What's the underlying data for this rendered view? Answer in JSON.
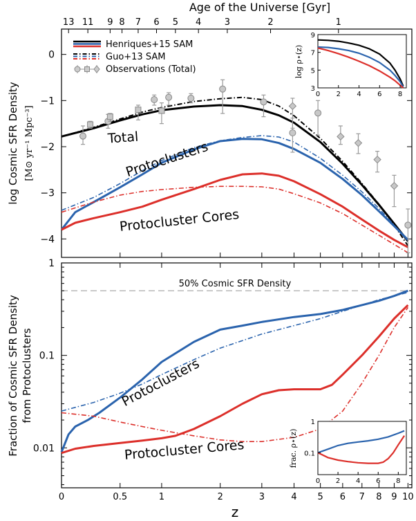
{
  "figure": {
    "top_axis_title": "Age of the Universe  [Gyr]",
    "x_axis_label": "z",
    "colors": {
      "total": "#000000",
      "protoclusters": "#2a63ad",
      "cores": "#dc2f2a",
      "observations": "#999999",
      "guide": "#aaaaaa"
    }
  },
  "chart_data": [
    {
      "id": "top",
      "type": "line",
      "title": "",
      "xlabel": "z",
      "ylabel": "log Cosmic SFR Density",
      "ylabel_units": "[M⊙ yr⁻¹ Mpc⁻³]",
      "xscale": "log(1+z)",
      "xlim": [
        0,
        10.3
      ],
      "ylim": [
        -4.4,
        0.55
      ],
      "yticks": [
        0,
        -1,
        -2,
        -3,
        -4
      ],
      "yticklabels": [
        "0",
        "−1",
        "−2",
        "−3",
        "−4"
      ],
      "top_axis": {
        "label": "Age of the Universe  [Gyr]",
        "ticks": [
          {
            "label": "13",
            "z": 0.05
          },
          {
            "label": "11",
            "z": 0.2
          },
          {
            "label": "9",
            "z": 0.4
          },
          {
            "label": "8",
            "z": 0.52
          },
          {
            "label": "7",
            "z": 0.7
          },
          {
            "label": "6",
            "z": 0.93
          },
          {
            "label": "5",
            "z": 1.2
          },
          {
            "label": "4",
            "z": 1.58
          },
          {
            "label": "3",
            "z": 2.15
          },
          {
            "label": "2",
            "z": 3.25
          },
          {
            "label": "1",
            "z": 5.8
          }
        ]
      },
      "legend": {
        "position": "top-left",
        "entries": [
          {
            "label": "Henriques+15 SAM",
            "style": "solid"
          },
          {
            "label": "Guo+13 SAM",
            "style": "dash-dot"
          },
          {
            "label": "Observations (Total)",
            "style": "markers"
          }
        ]
      },
      "annotations": [
        {
          "text": "Total",
          "color": "#000000",
          "z": 0.38,
          "y": -1.92,
          "rotate": -4
        },
        {
          "text": "Protoclusters",
          "color": "#2a63ad",
          "z": 0.58,
          "y": -2.65,
          "rotate": -18
        },
        {
          "text": "Protocluster Cores",
          "color": "#dc2f2a",
          "z": 0.5,
          "y": -3.83,
          "rotate": -6
        }
      ],
      "series": [
        {
          "name": "Total (Henriques+15)",
          "color": "#000000",
          "style": "solid",
          "width": 3,
          "x": [
            0,
            0.25,
            0.5,
            0.75,
            1,
            1.5,
            2,
            2.5,
            3,
            3.5,
            4,
            5,
            6,
            7,
            8,
            9,
            10
          ],
          "y": [
            -1.78,
            -1.6,
            -1.43,
            -1.3,
            -1.21,
            -1.13,
            -1.1,
            -1.12,
            -1.2,
            -1.32,
            -1.48,
            -1.9,
            -2.37,
            -2.83,
            -3.26,
            -3.67,
            -4.05
          ]
        },
        {
          "name": "Total (Guo+13)",
          "color": "#000000",
          "style": "dashdot",
          "width": 2,
          "x": [
            0,
            0.25,
            0.5,
            0.75,
            1,
            1.5,
            2,
            2.5,
            3,
            3.5,
            4,
            5,
            6,
            7,
            8,
            9,
            10
          ],
          "y": [
            -1.78,
            -1.58,
            -1.4,
            -1.25,
            -1.15,
            -1.02,
            -0.96,
            -0.93,
            -0.98,
            -1.12,
            -1.33,
            -1.82,
            -2.32,
            -2.8,
            -3.25,
            -3.7,
            -4.15
          ]
        },
        {
          "name": "Protoclusters (Henriques+15)",
          "color": "#2a63ad",
          "style": "solid",
          "width": 3,
          "x": [
            0,
            0.1,
            0.25,
            0.5,
            0.75,
            1,
            1.5,
            2,
            2.5,
            3,
            3.5,
            4,
            5,
            6,
            7,
            8,
            9,
            10
          ],
          "y": [
            -3.8,
            -3.42,
            -3.2,
            -2.88,
            -2.6,
            -2.35,
            -2.06,
            -1.88,
            -1.83,
            -1.84,
            -1.92,
            -2.05,
            -2.35,
            -2.7,
            -3.05,
            -3.4,
            -3.72,
            -4.02
          ]
        },
        {
          "name": "Protoclusters (Guo+13)",
          "color": "#2a63ad",
          "style": "dashdot",
          "width": 1.6,
          "x": [
            0,
            0.25,
            0.5,
            0.75,
            1,
            1.5,
            2,
            2.5,
            3,
            3.5,
            4,
            5,
            6,
            7,
            8,
            9,
            10
          ],
          "y": [
            -3.38,
            -3.1,
            -2.8,
            -2.52,
            -2.3,
            -2.02,
            -1.87,
            -1.8,
            -1.76,
            -1.79,
            -1.9,
            -2.25,
            -2.62,
            -2.98,
            -3.34,
            -3.7,
            -4.05
          ]
        },
        {
          "name": "Protocluster Cores (Henriques+15)",
          "color": "#dc2f2a",
          "style": "solid",
          "width": 3,
          "x": [
            0,
            0.1,
            0.25,
            0.5,
            0.75,
            1,
            1.5,
            2,
            2.5,
            3,
            3.5,
            4,
            5,
            6,
            7,
            8,
            9,
            10
          ],
          "y": [
            -3.8,
            -3.65,
            -3.55,
            -3.42,
            -3.3,
            -3.15,
            -2.92,
            -2.72,
            -2.6,
            -2.58,
            -2.63,
            -2.75,
            -3.03,
            -3.3,
            -3.58,
            -3.82,
            -4.02,
            -4.18
          ]
        },
        {
          "name": "Protocluster Cores (Guo+13)",
          "color": "#dc2f2a",
          "style": "dashdot",
          "width": 1.6,
          "x": [
            0,
            0.25,
            0.5,
            0.75,
            1,
            1.5,
            2,
            2.5,
            3,
            3.5,
            4,
            5,
            6,
            7,
            8,
            9,
            10
          ],
          "y": [
            -3.42,
            -3.2,
            -3.05,
            -2.97,
            -2.93,
            -2.88,
            -2.86,
            -2.86,
            -2.87,
            -2.92,
            -3.02,
            -3.22,
            -3.45,
            -3.7,
            -3.92,
            -4.12,
            -4.3
          ]
        }
      ],
      "observations": [
        {
          "z": 0.16,
          "y": -1.77,
          "lo": -1.95,
          "hi": -1.55,
          "marker": "circle"
        },
        {
          "z": 0.22,
          "y": -1.52,
          "lo": -1.6,
          "hi": -1.45,
          "marker": "square"
        },
        {
          "z": 0.38,
          "y": -1.45,
          "lo": -1.6,
          "hi": -1.3,
          "marker": "circle"
        },
        {
          "z": 0.4,
          "y": -1.35,
          "lo": -1.45,
          "hi": -1.28,
          "marker": "square"
        },
        {
          "z": 0.7,
          "y": -1.2,
          "lo": -1.42,
          "hi": -1.1,
          "marker": "square"
        },
        {
          "z": 0.9,
          "y": -0.98,
          "lo": -1.1,
          "hi": -0.88,
          "marker": "circle"
        },
        {
          "z": 1.0,
          "y": -1.22,
          "lo": -1.5,
          "hi": -1.05,
          "marker": "square"
        },
        {
          "z": 1.1,
          "y": -0.93,
          "lo": -1.1,
          "hi": -0.83,
          "marker": "circle"
        },
        {
          "z": 1.45,
          "y": -0.95,
          "lo": -1.05,
          "hi": -0.85,
          "marker": "circle"
        },
        {
          "z": 2.05,
          "y": -0.75,
          "lo": -1.28,
          "hi": -0.55,
          "marker": "circle"
        },
        {
          "z": 3.05,
          "y": -1.03,
          "lo": -1.35,
          "hi": -0.88,
          "marker": "circle"
        },
        {
          "z": 3.95,
          "y": -1.12,
          "lo": -1.6,
          "hi": -0.95,
          "marker": "diamond"
        },
        {
          "z": 3.95,
          "y": -1.7,
          "lo": -2.12,
          "hi": -1.38,
          "marker": "circle"
        },
        {
          "z": 4.9,
          "y": -1.27,
          "lo": -1.75,
          "hi": -1.0,
          "marker": "circle"
        },
        {
          "z": 5.9,
          "y": -1.78,
          "lo": -1.95,
          "hi": -1.55,
          "marker": "diamond"
        },
        {
          "z": 6.8,
          "y": -1.92,
          "lo": -2.15,
          "hi": -1.72,
          "marker": "diamond"
        },
        {
          "z": 7.9,
          "y": -2.28,
          "lo": -2.55,
          "hi": -2.1,
          "marker": "diamond"
        },
        {
          "z": 9.0,
          "y": -2.85,
          "lo": -3.3,
          "hi": -2.62,
          "marker": "diamond"
        },
        {
          "z": 10.0,
          "y": -3.7,
          "lo": -4.3,
          "hi": -3.35,
          "marker": "circle"
        }
      ]
    },
    {
      "id": "top-inset",
      "type": "line",
      "ylabel": "log ρ⋆(z)",
      "xlim": [
        0,
        8.6
      ],
      "ylim": [
        3,
        9
      ],
      "xticks": [
        0,
        2,
        4,
        6,
        8
      ],
      "xticklabels": [
        "0",
        "2",
        "4",
        "6",
        "8"
      ],
      "yticks": [
        3,
        5,
        7,
        9
      ],
      "yticklabels": [
        "3",
        "5",
        "7",
        "9"
      ],
      "series": [
        {
          "name": "Total",
          "color": "#000000",
          "x": [
            0,
            1,
            2,
            3,
            4,
            5,
            6,
            7,
            7.5,
            8,
            8.3
          ],
          "y": [
            8.4,
            8.35,
            8.25,
            8.05,
            7.8,
            7.4,
            6.8,
            5.8,
            5.0,
            4.0,
            3.2
          ]
        },
        {
          "name": "Protoclusters",
          "color": "#2a63ad",
          "x": [
            0,
            1,
            2,
            3,
            4,
            5,
            6,
            7,
            7.5,
            8,
            8.3
          ],
          "y": [
            7.6,
            7.55,
            7.4,
            7.2,
            6.9,
            6.45,
            5.85,
            5.0,
            4.4,
            3.7,
            3.1
          ]
        },
        {
          "name": "Cores",
          "color": "#dc2f2a",
          "x": [
            0,
            1,
            2,
            3,
            4,
            5,
            6,
            7,
            7.5,
            8,
            8.3
          ],
          "y": [
            7.5,
            7.2,
            6.85,
            6.45,
            6.0,
            5.5,
            4.9,
            4.2,
            3.8,
            3.3,
            3.0
          ]
        }
      ]
    },
    {
      "id": "bottom",
      "type": "line",
      "xlabel": "z",
      "ylabel": "Fraction of Cosmic SFR Density from Protoclusters",
      "ylabel_lines": [
        "Fraction of Cosmic SFR Density",
        "from Protoclusters"
      ],
      "xscale": "log(1+z)",
      "yscale": "log",
      "xlim": [
        0,
        10.3
      ],
      "ylim": [
        0.0037,
        1
      ],
      "yticks": [
        1,
        0.1,
        0.01
      ],
      "yticklabels": [
        "1",
        "0.1",
        "0.01"
      ],
      "xticks": [
        0,
        0.5,
        1,
        2,
        3,
        4,
        5,
        6,
        7,
        8,
        9,
        10
      ],
      "xticklabels": [
        "0",
        "0.5",
        "1",
        "2",
        "3",
        "4",
        "5",
        "6",
        "7",
        "8",
        "9",
        "10"
      ],
      "reference_line": {
        "value": 0.5,
        "label": "50% Cosmic SFR Density"
      },
      "annotations": [
        {
          "text": "Protoclusters",
          "color": "#2a63ad",
          "z": 0.55,
          "y": 0.028,
          "rotate": -28
        },
        {
          "text": "Protocluster Cores",
          "color": "#dc2f2a",
          "z": 0.55,
          "y": 0.0075,
          "rotate": -5
        }
      ],
      "series": [
        {
          "name": "Protoclusters (Henriques+15)",
          "color": "#2a63ad",
          "style": "solid",
          "width": 3,
          "x": [
            0,
            0.05,
            0.1,
            0.2,
            0.3,
            0.5,
            0.75,
            1,
            1.5,
            2,
            2.5,
            3,
            4,
            5,
            6,
            7,
            8,
            9,
            10
          ],
          "y": [
            0.009,
            0.014,
            0.017,
            0.02,
            0.024,
            0.035,
            0.055,
            0.085,
            0.14,
            0.19,
            0.21,
            0.23,
            0.26,
            0.28,
            0.31,
            0.35,
            0.39,
            0.44,
            0.5
          ]
        },
        {
          "name": "Protoclusters (Guo+13)",
          "color": "#2a63ad",
          "style": "dashdot",
          "width": 1.6,
          "x": [
            0,
            0.25,
            0.5,
            0.75,
            1,
            1.5,
            2,
            3,
            4,
            5,
            6,
            7,
            8,
            9,
            10
          ],
          "y": [
            0.025,
            0.031,
            0.039,
            0.049,
            0.062,
            0.09,
            0.12,
            0.17,
            0.21,
            0.25,
            0.3,
            0.35,
            0.4,
            0.44,
            0.48
          ]
        },
        {
          "name": "Protocluster Cores (Henriques+15)",
          "color": "#dc2f2a",
          "style": "solid",
          "width": 3,
          "x": [
            0,
            0.1,
            0.25,
            0.5,
            0.75,
            1,
            1.2,
            1.5,
            2,
            2.5,
            3,
            3.5,
            4,
            4.5,
            5,
            5.5,
            6,
            7,
            8,
            9,
            10
          ],
          "y": [
            0.0088,
            0.0098,
            0.0105,
            0.0113,
            0.012,
            0.0127,
            0.0135,
            0.016,
            0.022,
            0.03,
            0.038,
            0.042,
            0.043,
            0.043,
            0.043,
            0.048,
            0.062,
            0.1,
            0.16,
            0.25,
            0.35
          ]
        },
        {
          "name": "Protocluster Cores (Guo+13)",
          "color": "#dc2f2a",
          "style": "dashdot",
          "width": 1.6,
          "x": [
            0,
            0.25,
            0.5,
            0.75,
            1,
            1.5,
            2,
            2.5,
            3,
            4,
            5,
            6,
            7,
            8,
            9,
            10
          ],
          "y": [
            0.024,
            0.022,
            0.019,
            0.017,
            0.0155,
            0.0135,
            0.0122,
            0.0117,
            0.0117,
            0.013,
            0.016,
            0.025,
            0.05,
            0.1,
            0.2,
            0.33
          ]
        }
      ]
    },
    {
      "id": "bottom-inset",
      "type": "line",
      "ylabel": "frac. ρ⋆(z)",
      "yscale": "log",
      "xlim": [
        0,
        8.8
      ],
      "ylim": [
        0.02,
        1
      ],
      "xticks": [
        0,
        2,
        4,
        6,
        8
      ],
      "xticklabels": [
        "0",
        "2",
        "4",
        "6",
        "8"
      ],
      "yticks": [
        1,
        0.1
      ],
      "yticklabels": [
        "1",
        "0.1"
      ],
      "series": [
        {
          "name": "Protoclusters",
          "color": "#2a63ad",
          "x": [
            0,
            1,
            2,
            3,
            4,
            5,
            6,
            7,
            8,
            8.6
          ],
          "y": [
            0.1,
            0.13,
            0.17,
            0.2,
            0.22,
            0.24,
            0.27,
            0.32,
            0.42,
            0.5
          ]
        },
        {
          "name": "Cores",
          "color": "#dc2f2a",
          "x": [
            0,
            1,
            2,
            3,
            4,
            5,
            6,
            6.5,
            7,
            7.5,
            8,
            8.6
          ],
          "y": [
            0.1,
            0.07,
            0.058,
            0.052,
            0.048,
            0.046,
            0.046,
            0.05,
            0.065,
            0.1,
            0.18,
            0.35
          ]
        }
      ]
    }
  ]
}
